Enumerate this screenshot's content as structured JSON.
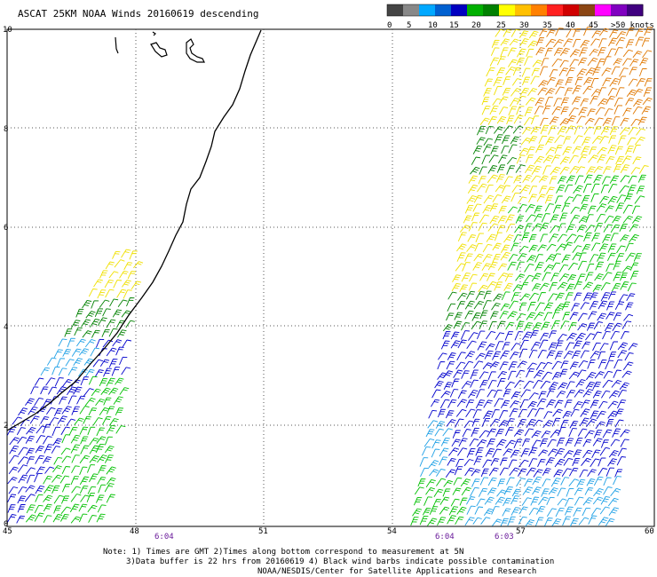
{
  "title": "ASCAT 25KM NOAA Winds 20160619 descending",
  "legend": {
    "swatches": [
      {
        "color": "#444444"
      },
      {
        "color": "#888888"
      },
      {
        "color": "#00a8ff"
      },
      {
        "color": "#0060d0"
      },
      {
        "color": "#0000c0"
      },
      {
        "color": "#00b000"
      },
      {
        "color": "#008000"
      },
      {
        "color": "#ffff00"
      },
      {
        "color": "#ffc000"
      },
      {
        "color": "#ff8000"
      },
      {
        "color": "#ff2020"
      },
      {
        "color": "#d00000"
      },
      {
        "color": "#8b4513"
      },
      {
        "color": "#ff00ff"
      },
      {
        "color": "#8000c0"
      },
      {
        "color": "#400080"
      }
    ],
    "labels": [
      "0",
      "5",
      "10",
      "15",
      "20",
      "25",
      "30",
      "35",
      "40",
      "45",
      ">50 knots"
    ]
  },
  "axes": {
    "lon_ticks": [
      "45",
      "48",
      "51",
      "54",
      "57",
      "60"
    ],
    "lat_ticks": [
      "10",
      "8",
      "6",
      "4",
      "2"
    ],
    "extra_lat_label": "0"
  },
  "times": [
    "6:04",
    "6:04",
    "6:03"
  ],
  "notes": {
    "line1": "Note: 1) Times are GMT 2)Times along bottom correspond to measurement at 5N",
    "line2": "3)Data buffer is 22 hrs from 20160619 4) Black wind barbs indicate possible contamination",
    "line3": "NOAA/NESDIS/Center for Satellite Applications and Research"
  },
  "colors": {
    "blue": "#0000cc",
    "lightblue": "#1ea0e6",
    "green": "#00c000",
    "darkgreen": "#008000",
    "yellow": "#f0e000",
    "orange": "#e07800",
    "grid": "#555555"
  }
}
